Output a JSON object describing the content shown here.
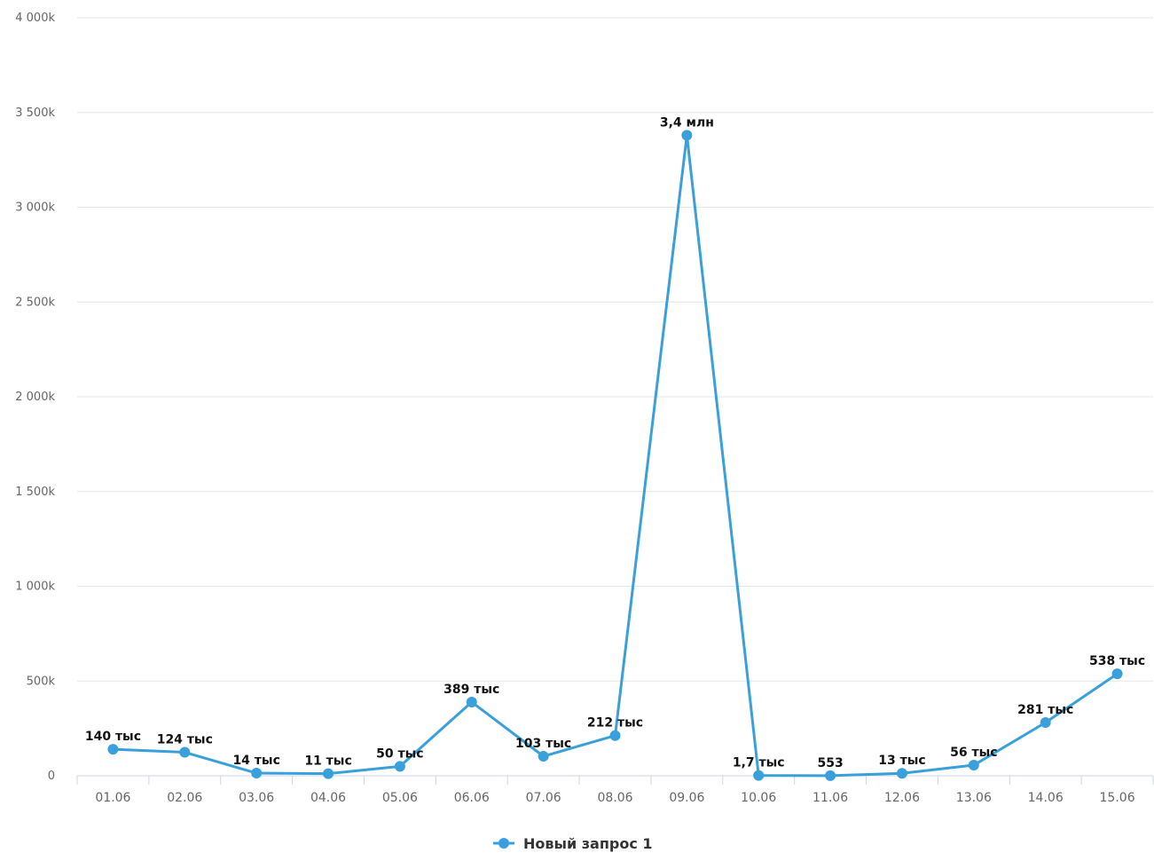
{
  "chart_data": {
    "type": "line",
    "title": "",
    "xlabel": "",
    "ylabel": "",
    "categories": [
      "01.06",
      "02.06",
      "03.06",
      "04.06",
      "05.06",
      "06.06",
      "07.06",
      "08.06",
      "09.06",
      "10.06",
      "11.06",
      "12.06",
      "13.06",
      "14.06",
      "15.06"
    ],
    "series": [
      {
        "name": "Новый запрос 1",
        "color": "#3aa0db",
        "values": [
          140000,
          124000,
          14000,
          11000,
          50000,
          389000,
          103000,
          212000,
          3380000,
          1700,
          553,
          13000,
          56000,
          281000,
          538000
        ],
        "labels": [
          "140 тыс",
          "124 тыс",
          "14 тыс",
          "11 тыс",
          "50 тыс",
          "389 тыс",
          "103 тыс",
          "212 тыс",
          "3,4 млн",
          "1,7 тыс",
          "553",
          "13 тыс",
          "56 тыс",
          "281 тыс",
          "538 тыс"
        ]
      }
    ],
    "ylim": [
      0,
      4000000
    ],
    "yticks": [
      0,
      500000,
      1000000,
      1500000,
      2000000,
      2500000,
      3000000,
      3500000,
      4000000
    ],
    "ytick_labels": [
      "0",
      "500k",
      "1 000k",
      "1 500k",
      "2 000k",
      "2 500k",
      "3 000k",
      "3 500k",
      "4 000k"
    ],
    "grid": true,
    "legend_position": "bottom-center"
  }
}
